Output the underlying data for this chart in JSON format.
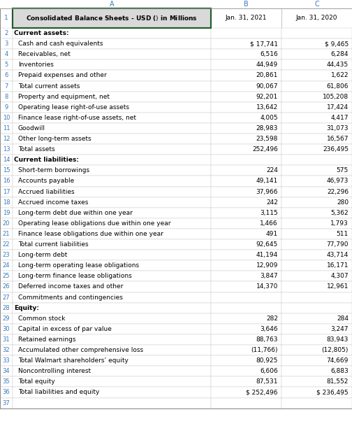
{
  "title": "Consolidated Balance Sheets - USD ($) $ in Millions",
  "col_b": "Jan. 31, 2021",
  "col_c": "Jan. 31, 2020",
  "rows": [
    {
      "label": "Current assets:",
      "val1": "",
      "val2": "",
      "bold": true,
      "indent": false
    },
    {
      "label": "Cash and cash equivalents",
      "val1": "$ 17,741",
      "val2": "$ 9,465",
      "bold": false,
      "indent": true
    },
    {
      "label": "Receivables, net",
      "val1": "6,516",
      "val2": "6,284",
      "bold": false,
      "indent": true
    },
    {
      "label": "Inventories",
      "val1": "44,949",
      "val2": "44,435",
      "bold": false,
      "indent": true
    },
    {
      "label": "Prepaid expenses and other",
      "val1": "20,861",
      "val2": "1,622",
      "bold": false,
      "indent": true
    },
    {
      "label": "Total current assets",
      "val1": "90,067",
      "val2": "61,806",
      "bold": false,
      "indent": true
    },
    {
      "label": "Property and equipment, net",
      "val1": "92,201",
      "val2": "105,208",
      "bold": false,
      "indent": true
    },
    {
      "label": "Operating lease right-of-use assets",
      "val1": "13,642",
      "val2": "17,424",
      "bold": false,
      "indent": true
    },
    {
      "label": "Finance lease right-of-use assets, net",
      "val1": "4,005",
      "val2": "4,417",
      "bold": false,
      "indent": true
    },
    {
      "label": "Goodwill",
      "val1": "28,983",
      "val2": "31,073",
      "bold": false,
      "indent": true
    },
    {
      "label": "Other long-term assets",
      "val1": "23,598",
      "val2": "16,567",
      "bold": false,
      "indent": true
    },
    {
      "label": "Total assets",
      "val1": "252,496",
      "val2": "236,495",
      "bold": false,
      "indent": true
    },
    {
      "label": "Current liabilities:",
      "val1": "",
      "val2": "",
      "bold": true,
      "indent": false
    },
    {
      "label": "Short-term borrowings",
      "val1": "224",
      "val2": "575",
      "bold": false,
      "indent": true
    },
    {
      "label": "Accounts payable",
      "val1": "49,141",
      "val2": "46,973",
      "bold": false,
      "indent": true
    },
    {
      "label": "Accrued liabilities",
      "val1": "37,966",
      "val2": "22,296",
      "bold": false,
      "indent": true
    },
    {
      "label": "Accrued income taxes",
      "val1": "242",
      "val2": "280",
      "bold": false,
      "indent": true
    },
    {
      "label": "Long-term debt due within one year",
      "val1": "3,115",
      "val2": "5,362",
      "bold": false,
      "indent": true
    },
    {
      "label": "Operating lease obligations due within one year",
      "val1": "1,466",
      "val2": "1,793",
      "bold": false,
      "indent": true
    },
    {
      "label": "Finance lease obligations due within one year",
      "val1": "491",
      "val2": "511",
      "bold": false,
      "indent": true
    },
    {
      "label": "Total current liabilities",
      "val1": "92,645",
      "val2": "77,790",
      "bold": false,
      "indent": true
    },
    {
      "label": "Long-term debt",
      "val1": "41,194",
      "val2": "43,714",
      "bold": false,
      "indent": true
    },
    {
      "label": "Long-term operating lease obligations",
      "val1": "12,909",
      "val2": "16,171",
      "bold": false,
      "indent": true
    },
    {
      "label": "Long-term finance lease obligations",
      "val1": "3,847",
      "val2": "4,307",
      "bold": false,
      "indent": true
    },
    {
      "label": "Deferred income taxes and other",
      "val1": "14,370",
      "val2": "12,961",
      "bold": false,
      "indent": true
    },
    {
      "label": "Commitments and contingencies",
      "val1": "",
      "val2": "",
      "bold": false,
      "indent": true
    },
    {
      "label": "Equity:",
      "val1": "",
      "val2": "",
      "bold": true,
      "indent": false
    },
    {
      "label": "Common stock",
      "val1": "282",
      "val2": "284",
      "bold": false,
      "indent": true
    },
    {
      "label": "Capital in excess of par value",
      "val1": "3,646",
      "val2": "3,247",
      "bold": false,
      "indent": true
    },
    {
      "label": "Retained earnings",
      "val1": "88,763",
      "val2": "83,943",
      "bold": false,
      "indent": true
    },
    {
      "label": "Accumulated other comprehensive loss",
      "val1": "(11,766)",
      "val2": "(12,805)",
      "bold": false,
      "indent": true
    },
    {
      "label": "Total Walmart shareholders’ equity",
      "val1": "80,925",
      "val2": "74,669",
      "bold": false,
      "indent": true
    },
    {
      "label": "Noncontrolling interest",
      "val1": "6,606",
      "val2": "6,883",
      "bold": false,
      "indent": true
    },
    {
      "label": "Total equity",
      "val1": "87,531",
      "val2": "81,552",
      "bold": false,
      "indent": true
    },
    {
      "label": "Total liabilities and equity",
      "val1": "$ 252,496",
      "val2": "$ 236,495",
      "bold": false,
      "indent": true
    },
    {
      "label": "",
      "val1": "",
      "val2": "",
      "bold": false,
      "indent": false
    }
  ],
  "font_size": 6.5,
  "figsize": [
    5.04,
    6.09
  ],
  "dpi": 100
}
